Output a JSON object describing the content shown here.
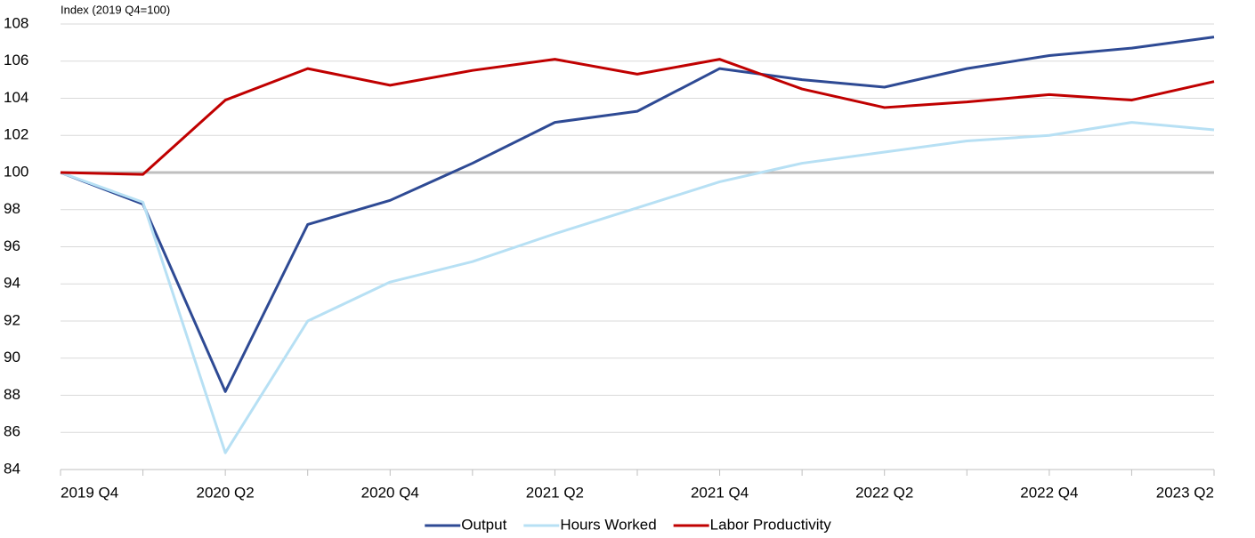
{
  "chart_data": {
    "type": "line",
    "y_label": "Index (2019 Q4=100)",
    "categories": [
      "2019 Q4",
      null,
      "2020 Q2",
      null,
      "2020 Q4",
      null,
      "2021 Q2",
      null,
      "2021 Q4",
      null,
      "2022 Q2",
      null,
      "2022 Q4",
      null,
      "2023 Q2"
    ],
    "series": [
      {
        "name": "Output",
        "color": "#2e4a94",
        "values": [
          100,
          98.3,
          88.2,
          97.2,
          98.5,
          100.5,
          102.7,
          103.3,
          105.6,
          105.0,
          104.6,
          105.6,
          106.3,
          106.7,
          107.3
        ]
      },
      {
        "name": "Hours Worked",
        "color": "#b7e0f4",
        "values": [
          100,
          98.4,
          84.9,
          92.0,
          94.1,
          95.2,
          96.7,
          98.1,
          99.5,
          100.5,
          101.1,
          101.7,
          102.0,
          102.7,
          102.3
        ]
      },
      {
        "name": "Labor Productivity",
        "color": "#c00000",
        "values": [
          100,
          99.9,
          103.9,
          105.6,
          104.7,
          105.5,
          106.1,
          105.3,
          106.1,
          104.5,
          103.5,
          103.8,
          104.2,
          103.9,
          104.9
        ]
      }
    ],
    "ylim": [
      84,
      108
    ],
    "yticks": [
      84,
      86,
      88,
      90,
      92,
      94,
      96,
      98,
      100,
      102,
      104,
      106,
      108
    ],
    "reference_line": 100,
    "grid": true,
    "legend": "bottom"
  }
}
